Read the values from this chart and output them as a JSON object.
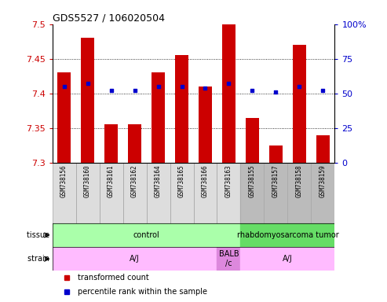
{
  "title": "GDS5527 / 106020504",
  "samples": [
    "GSM738156",
    "GSM738160",
    "GSM738161",
    "GSM738162",
    "GSM738164",
    "GSM738165",
    "GSM738166",
    "GSM738163",
    "GSM738155",
    "GSM738157",
    "GSM738158",
    "GSM738159"
  ],
  "transformed_count": [
    7.43,
    7.48,
    7.355,
    7.355,
    7.43,
    7.455,
    7.41,
    7.5,
    7.365,
    7.325,
    7.47,
    7.34
  ],
  "percentile_rank": [
    55,
    57,
    52,
    52,
    55,
    55,
    54,
    57,
    52,
    51,
    55,
    52
  ],
  "ymin": 7.3,
  "ymax": 7.5,
  "yticks": [
    7.3,
    7.35,
    7.4,
    7.45,
    7.5
  ],
  "y2min": 0,
  "y2max": 100,
  "y2ticks": [
    0,
    25,
    50,
    75,
    100
  ],
  "bar_color": "#cc0000",
  "dot_color": "#0000cc",
  "bar_bottom": 7.3,
  "tissue_groups": [
    {
      "label": "control",
      "start": 0,
      "end": 8,
      "color": "#aaffaa"
    },
    {
      "label": "rhabdomyosarcoma tumor",
      "start": 8,
      "end": 12,
      "color": "#66dd66"
    }
  ],
  "strain_groups": [
    {
      "label": "A/J",
      "start": 0,
      "end": 7,
      "color": "#ffbbff"
    },
    {
      "label": "BALB\n/c",
      "start": 7,
      "end": 8,
      "color": "#dd88dd"
    },
    {
      "label": "A/J",
      "start": 8,
      "end": 12,
      "color": "#ffbbff"
    }
  ],
  "sample_bg_colors_light": "#dddddd",
  "sample_bg_colors_dark": "#bbbbbb",
  "sample_bg_boundary": 8,
  "legend_items": [
    {
      "label": "transformed count",
      "color": "#cc0000"
    },
    {
      "label": "percentile rank within the sample",
      "color": "#0000cc"
    }
  ]
}
